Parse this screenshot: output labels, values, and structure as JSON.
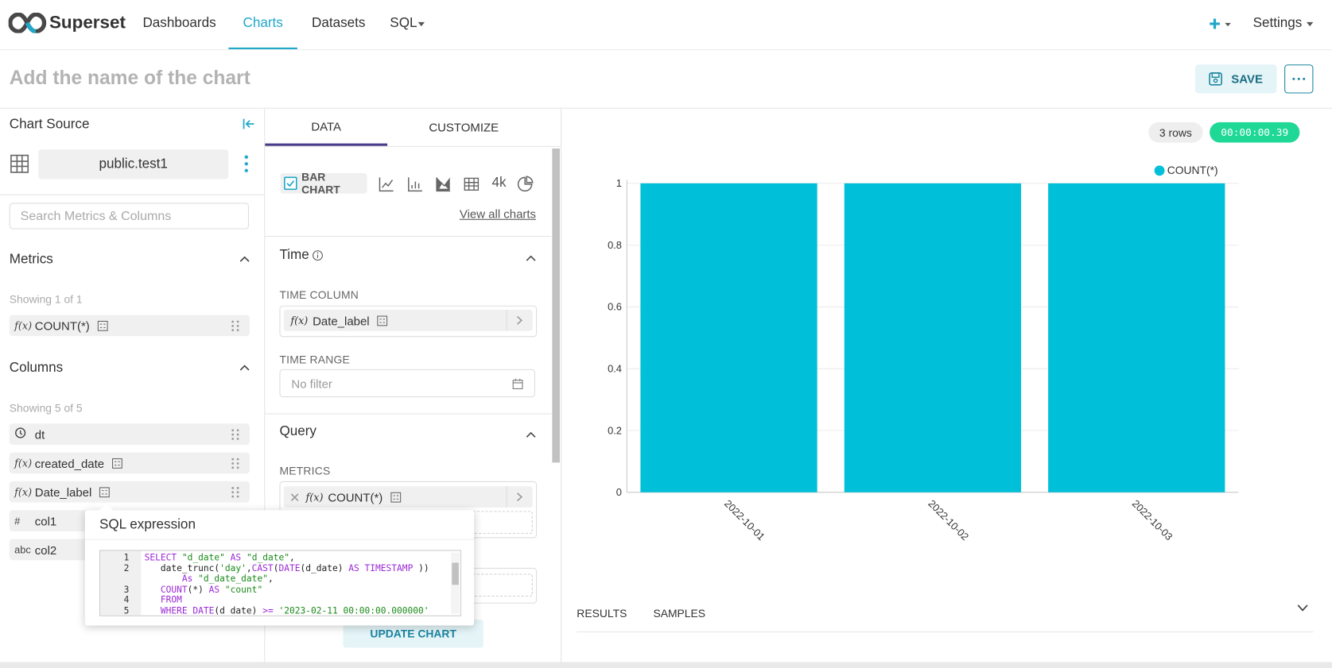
{
  "nav": {
    "brand": "Superset",
    "links": [
      "Dashboards",
      "Charts",
      "Datasets",
      "SQL"
    ],
    "settings": "Settings"
  },
  "header": {
    "title_placeholder": "Add the name of the chart",
    "save": "SAVE"
  },
  "source": {
    "heading": "Chart Source",
    "dataset": "public.test1",
    "search_placeholder": "Search Metrics & Columns"
  },
  "metrics": {
    "heading": "Metrics",
    "showing": "Showing 1 of 1",
    "items": [
      {
        "type": "f(x)",
        "name": "COUNT(*)"
      }
    ]
  },
  "columns": {
    "heading": "Columns",
    "showing": "Showing 5 of 5",
    "items": [
      {
        "name": "dt"
      },
      {
        "type": "f(x)",
        "name": "created_date"
      },
      {
        "type": "f(x)",
        "name": "Date_label"
      },
      {
        "type": "#",
        "name": "col1"
      },
      {
        "type": "abc",
        "name": "col2"
      }
    ]
  },
  "controls": {
    "tabs": [
      "DATA",
      "CUSTOMIZE"
    ],
    "viz": "BAR CHART",
    "viz_4k": "4k",
    "view_all": "View all charts",
    "time": {
      "heading": "Time",
      "time_column_label": "TIME COLUMN",
      "time_column": {
        "type": "f(x)",
        "name": "Date_label"
      },
      "time_range_label": "TIME RANGE",
      "time_range": "No filter"
    },
    "query": {
      "heading": "Query",
      "metrics_label": "METRICS",
      "metric": {
        "type": "f(x)",
        "name": "COUNT(*)"
      }
    },
    "update": "UPDATE CHART"
  },
  "chart_data": {
    "type": "bar",
    "rows": "3 rows",
    "duration": "00:00:00.39",
    "categories": [
      "2022-10-01",
      "2022-10-02",
      "2022-10-03"
    ],
    "series": [
      {
        "name": "COUNT(*)",
        "color": "#00bfd8",
        "values": [
          1,
          1,
          1
        ]
      }
    ],
    "ylim": [
      0,
      1
    ],
    "yticks": [
      0,
      0.2,
      0.4,
      0.6,
      0.8,
      1
    ],
    "grid": true
  },
  "results": {
    "tabs": [
      "RESULTS",
      "SAMPLES"
    ]
  },
  "popover": {
    "title": "SQL expression",
    "lines": [
      {
        "number": 1,
        "code": "SELECT \"d_date\" AS \"d_date\","
      },
      {
        "number": 2,
        "code": "   date_trunc('day',CAST(DATE(d_date) AS TIMESTAMP ))"
      },
      {
        "code": "       As \"d_date_date\","
      },
      {
        "number": 3,
        "code": "   COUNT(*) AS \"count\""
      },
      {
        "number": 4,
        "code": "   FROM"
      },
      {
        "number": 5,
        "code": "   WHERE DATE(d_date) >= '2023-02-11 00:00:00.000000'"
      }
    ]
  }
}
